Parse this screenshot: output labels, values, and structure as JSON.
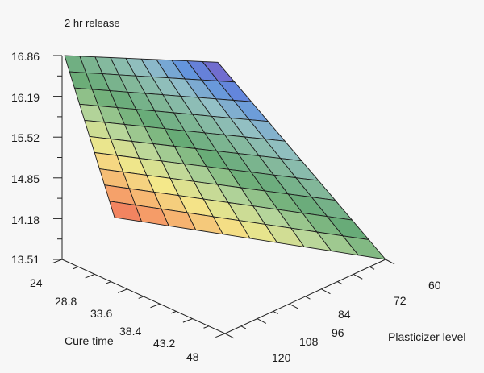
{
  "chart_data": {
    "type": "surface",
    "title": "2 hr release",
    "z_label": "",
    "x_label": "Cure time",
    "y_label": "Plasticizer level",
    "z_ticks": [
      "16.86",
      "16.19",
      "15.52",
      "14.85",
      "14.18",
      "13.51"
    ],
    "x_ticks": [
      "24",
      "28.8",
      "33.6",
      "38.4",
      "43.2",
      "48"
    ],
    "y_ticks": [
      "60",
      "72",
      "84",
      "96",
      "108",
      "120"
    ],
    "x_range": [
      24,
      48
    ],
    "y_range": [
      60,
      120
    ],
    "z_range": [
      13.51,
      16.86
    ],
    "grid_size": 10,
    "corner_values": {
      "cure24_plast120": 16.86,
      "cure48_plast120": 16.75,
      "cure24_plast60": 14.2,
      "cure48_plast60": 13.51
    },
    "colorscale": [
      "#7e56c4",
      "#5e8fe0",
      "#93c0c6",
      "#83b89a",
      "#66aa75",
      "#b5d59b",
      "#f4e88a",
      "#f6ac6d",
      "#f06a58"
    ]
  }
}
